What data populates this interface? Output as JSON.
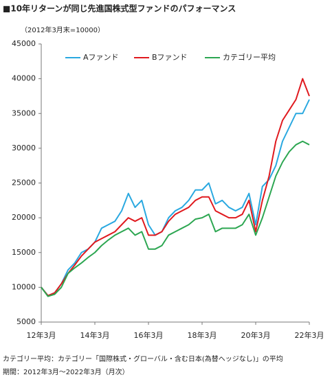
{
  "chart_data": {
    "type": "line",
    "title": "■10年リターンが同じ先進国株式型ファンドのパフォーマンス",
    "subtitle": "（2012年3月末=10000）",
    "categories": [
      "12年3月",
      null,
      null,
      null,
      null,
      null,
      null,
      null,
      "14年3月",
      null,
      null,
      null,
      null,
      null,
      null,
      null,
      "16年3月",
      null,
      null,
      null,
      null,
      null,
      null,
      null,
      "18年3月",
      null,
      null,
      null,
      null,
      null,
      null,
      null,
      "20年3月",
      null,
      null,
      null,
      null,
      null,
      null,
      null,
      "22年3月"
    ],
    "series": [
      {
        "name": "Aファンド",
        "color": "#29a8e0",
        "values": [
          10000,
          8800,
          9200,
          10500,
          12500,
          13500,
          15000,
          15500,
          16500,
          18500,
          19000,
          19500,
          21000,
          23500,
          21500,
          22500,
          19000,
          17500,
          18000,
          20000,
          21000,
          21500,
          22500,
          24000,
          24000,
          25000,
          22000,
          22500,
          21500,
          21000,
          21500,
          23500,
          19000,
          24500,
          25500,
          27500,
          31000,
          33000,
          35000,
          35000,
          37000
        ]
      },
      {
        "name": "Bファンド",
        "color": "#e0191e",
        "values": [
          10000,
          8800,
          9200,
          10500,
          12000,
          13200,
          14500,
          15500,
          16500,
          17000,
          17500,
          18000,
          19000,
          20000,
          19500,
          20000,
          17500,
          17500,
          18000,
          19500,
          20500,
          21000,
          21500,
          22500,
          23000,
          23000,
          21000,
          20500,
          20000,
          20000,
          20500,
          22500,
          18000,
          22500,
          26000,
          31000,
          34000,
          35500,
          37000,
          40000,
          37500
        ]
      },
      {
        "name": "カテゴリー平均",
        "color": "#2ca651",
        "values": [
          10000,
          8700,
          9000,
          10000,
          12000,
          12800,
          13500,
          14300,
          15000,
          16000,
          16800,
          17500,
          18000,
          18500,
          17500,
          18000,
          15500,
          15500,
          16000,
          17500,
          18000,
          18500,
          19000,
          19800,
          20000,
          20500,
          18000,
          18500,
          18500,
          18500,
          19000,
          20500,
          17500,
          20000,
          23000,
          26000,
          28000,
          29500,
          30500,
          31000,
          30500
        ]
      }
    ],
    "ylim": [
      5000,
      45000
    ],
    "yticks": [
      5000,
      10000,
      15000,
      20000,
      25000,
      30000,
      35000,
      40000,
      45000
    ],
    "grid": false,
    "legend": "top",
    "notes": [
      "カテゴリー平均：カテゴリー「国際株式・グローバル・含む日本(為替ヘッジなし)」の平均",
      "期間：2012年3月～2022年3月（月次）"
    ]
  }
}
